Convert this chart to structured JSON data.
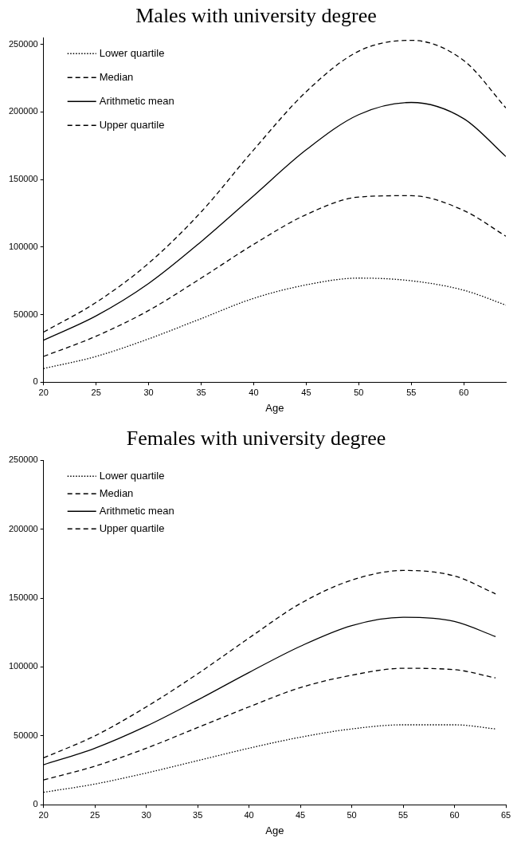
{
  "chart_data": [
    {
      "type": "line",
      "title": "Males with university degree",
      "xlabel": "Age",
      "x": [
        20,
        25,
        30,
        35,
        40,
        45,
        50,
        55,
        60,
        64
      ],
      "xlim": [
        20,
        64
      ],
      "xticks": [
        20,
        25,
        30,
        35,
        40,
        45,
        50,
        55,
        60
      ],
      "ylim": [
        0,
        255000
      ],
      "yticks": [
        0,
        50000,
        100000,
        150000,
        200000,
        250000
      ],
      "grid": false,
      "legend": "top left",
      "marker": "none",
      "series": [
        {
          "name": "Lower quartile",
          "color": "#000000",
          "line_style": "dotted",
          "values": [
            10000,
            19000,
            32000,
            47000,
            62000,
            72000,
            77000,
            75000,
            68000,
            57000
          ]
        },
        {
          "name": "Median",
          "color": "#000000",
          "line_style": "dashed",
          "values": [
            19000,
            34000,
            53000,
            77000,
            102000,
            124000,
            137000,
            138000,
            127000,
            108000
          ]
        },
        {
          "name": "Arithmetic mean",
          "color": "#000000",
          "line_style": "solid",
          "values": [
            31000,
            49000,
            73000,
            104000,
            138000,
            172000,
            198000,
            207000,
            195000,
            167000
          ]
        },
        {
          "name": "Upper quartile",
          "color": "#000000",
          "line_style": "dashed",
          "values": [
            37000,
            59000,
            88000,
            126000,
            172000,
            215000,
            245000,
            253000,
            238000,
            203000
          ]
        }
      ]
    },
    {
      "type": "line",
      "title": "Females with university degree",
      "xlabel": "Age",
      "x": [
        20,
        25,
        30,
        35,
        40,
        45,
        50,
        55,
        60,
        64
      ],
      "xlim": [
        20,
        65
      ],
      "xticks": [
        20,
        25,
        30,
        35,
        40,
        45,
        50,
        55,
        60,
        65
      ],
      "ylim": [
        0,
        250000
      ],
      "yticks": [
        0,
        50000,
        100000,
        150000,
        200000,
        250000
      ],
      "grid": false,
      "legend": "top left",
      "marker": "none",
      "series": [
        {
          "name": "Lower quartile",
          "color": "#000000",
          "line_style": "dotted",
          "values": [
            9000,
            15000,
            23000,
            32000,
            41000,
            49000,
            55000,
            58000,
            58000,
            55000
          ]
        },
        {
          "name": "Median",
          "color": "#000000",
          "line_style": "dashed",
          "values": [
            18000,
            28000,
            41000,
            56000,
            71000,
            85000,
            94000,
            99000,
            98000,
            92000
          ]
        },
        {
          "name": "Arithmetic mean",
          "color": "#000000",
          "line_style": "solid",
          "values": [
            29000,
            41000,
            57000,
            76000,
            96000,
            115000,
            130000,
            136000,
            133000,
            122000
          ]
        },
        {
          "name": "Upper quartile",
          "color": "#000000",
          "line_style": "dashed",
          "values": [
            34000,
            50000,
            71000,
            95000,
            121000,
            146000,
            163000,
            170000,
            166000,
            153000
          ]
        }
      ]
    }
  ]
}
